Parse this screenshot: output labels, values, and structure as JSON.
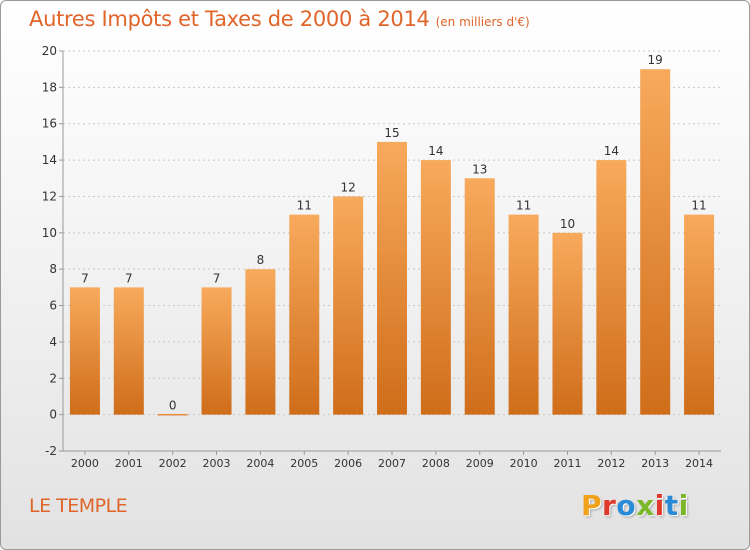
{
  "header": {
    "title": "Autres Impôts et Taxes de 2000 à 2014",
    "unit": "(en milliers d'€)"
  },
  "footer": {
    "commune": "LE TEMPLE",
    "logo_text": "Proxiti",
    "logo_colors": [
      "#f0a21c",
      "#e0382a",
      "#2a8ad6",
      "#7ab82a",
      "#e0382a",
      "#2a8ad6",
      "#7ab82a"
    ]
  },
  "colors": {
    "accent": "#e0652a",
    "bar_top": "#f8aa5c",
    "bar_bottom": "#cf6d1a",
    "grid": "#c8c8c8",
    "axis": "#999999",
    "label": "#333333"
  },
  "chart_data": {
    "type": "bar",
    "title": "Autres Impôts et Taxes de 2000 à 2014",
    "subtitle": "(en milliers d'€)",
    "categories": [
      "2000",
      "2001",
      "2002",
      "2003",
      "2004",
      "2005",
      "2006",
      "2007",
      "2008",
      "2009",
      "2010",
      "2011",
      "2012",
      "2013",
      "2014"
    ],
    "values": [
      7,
      7,
      0,
      7,
      8,
      11,
      12,
      15,
      14,
      13,
      11,
      10,
      14,
      19,
      11
    ],
    "ylim": [
      -2,
      20
    ],
    "yticks": [
      -2,
      0,
      2,
      4,
      6,
      8,
      10,
      12,
      14,
      16,
      18,
      20
    ],
    "grid": "horizontal, dotted",
    "legend": "none"
  }
}
